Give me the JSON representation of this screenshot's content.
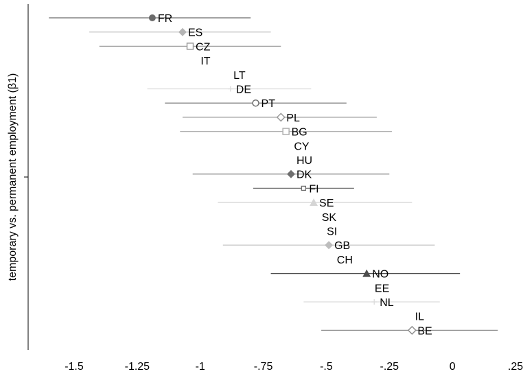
{
  "chart_data": {
    "type": "scatter",
    "title": "",
    "xlabel": "",
    "ylabel": "temporary vs. permanent employment (β1)",
    "xlim": [
      -1.62,
      0.26
    ],
    "x_ticks": [
      {
        "value": -1.5,
        "label": "-1.5"
      },
      {
        "value": -1.25,
        "label": "-1.25"
      },
      {
        "value": -1,
        "label": "-1"
      },
      {
        "value": -0.75,
        "label": "-.75"
      },
      {
        "value": -0.5,
        "label": "-.5"
      },
      {
        "value": -0.25,
        "label": "-.25"
      },
      {
        "value": 0,
        "label": "0"
      },
      {
        "value": 0.25,
        "label": ".25"
      }
    ],
    "grid": false,
    "legend": "none",
    "points": [
      {
        "label": "FR",
        "estimate": -1.19,
        "ci": [
          -1.6,
          -0.8
        ],
        "shown": true,
        "marker": "circle-filled",
        "color": "#6b6b6b"
      },
      {
        "label": "ES",
        "estimate": -1.07,
        "ci": [
          -1.44,
          -0.72
        ],
        "shown": true,
        "marker": "diamond-filled",
        "color": "#b5b5b5"
      },
      {
        "label": "CZ",
        "estimate": -1.04,
        "ci": [
          -1.4,
          -0.68
        ],
        "shown": true,
        "marker": "square-open",
        "color": "#9a9a9a"
      },
      {
        "label": "IT",
        "estimate": -1.02,
        "ci": null,
        "shown": false,
        "marker": "none",
        "color": "#999999"
      },
      {
        "label": "LT",
        "estimate": -0.89,
        "ci": null,
        "shown": false,
        "marker": "none",
        "color": "#999999"
      },
      {
        "label": "DE",
        "estimate": -0.88,
        "ci": [
          -1.21,
          -0.56
        ],
        "shown": true,
        "marker": "plus",
        "color": "#dcdcdc"
      },
      {
        "label": "PT",
        "estimate": -0.78,
        "ci": [
          -1.14,
          -0.42
        ],
        "shown": true,
        "marker": "circle-open",
        "color": "#6e6e6e"
      },
      {
        "label": "PL",
        "estimate": -0.68,
        "ci": [
          -1.07,
          -0.3
        ],
        "shown": true,
        "marker": "diamond-open",
        "color": "#9a9a9a"
      },
      {
        "label": "BG",
        "estimate": -0.66,
        "ci": [
          -1.08,
          -0.24
        ],
        "shown": true,
        "marker": "square-open",
        "color": "#b0b0b0"
      },
      {
        "label": "CY",
        "estimate": -0.65,
        "ci": null,
        "shown": false,
        "marker": "none",
        "color": "#999999"
      },
      {
        "label": "HU",
        "estimate": -0.64,
        "ci": null,
        "shown": false,
        "marker": "none",
        "color": "#999999"
      },
      {
        "label": "DK",
        "estimate": -0.64,
        "ci": [
          -1.03,
          -0.25
        ],
        "shown": true,
        "marker": "diamond-filled",
        "color": "#6e6e6e"
      },
      {
        "label": "FI",
        "estimate": -0.59,
        "ci": [
          -0.79,
          -0.39
        ],
        "shown": true,
        "marker": "square-open-small",
        "color": "#6e6e6e"
      },
      {
        "label": "SE",
        "estimate": -0.55,
        "ci": [
          -0.93,
          -0.16
        ],
        "shown": true,
        "marker": "triangle-filled",
        "color": "#d5d5d5"
      },
      {
        "label": "SK",
        "estimate": -0.54,
        "ci": null,
        "shown": false,
        "marker": "none",
        "color": "#999999"
      },
      {
        "label": "SI",
        "estimate": -0.52,
        "ci": null,
        "shown": false,
        "marker": "none",
        "color": "#999999"
      },
      {
        "label": "GB",
        "estimate": -0.49,
        "ci": [
          -0.91,
          -0.07
        ],
        "shown": true,
        "marker": "diamond-filled",
        "color": "#bdbdbd"
      },
      {
        "label": "CH",
        "estimate": -0.48,
        "ci": null,
        "shown": false,
        "marker": "none",
        "color": "#999999"
      },
      {
        "label": "NO",
        "estimate": -0.34,
        "ci": [
          -0.72,
          0.03
        ],
        "shown": true,
        "marker": "triangle-filled",
        "color": "#4d4d4d"
      },
      {
        "label": "EE",
        "estimate": -0.33,
        "ci": null,
        "shown": false,
        "marker": "none",
        "color": "#999999"
      },
      {
        "label": "NL",
        "estimate": -0.31,
        "ci": [
          -0.59,
          -0.05
        ],
        "shown": true,
        "marker": "plus",
        "color": "#dcdcdc"
      },
      {
        "label": "IL",
        "estimate": -0.17,
        "ci": null,
        "shown": false,
        "marker": "none",
        "color": "#999999"
      },
      {
        "label": "BE",
        "estimate": -0.16,
        "ci": [
          -0.52,
          0.18
        ],
        "shown": true,
        "marker": "diamond-open",
        "color": "#8f8f8f"
      }
    ]
  }
}
